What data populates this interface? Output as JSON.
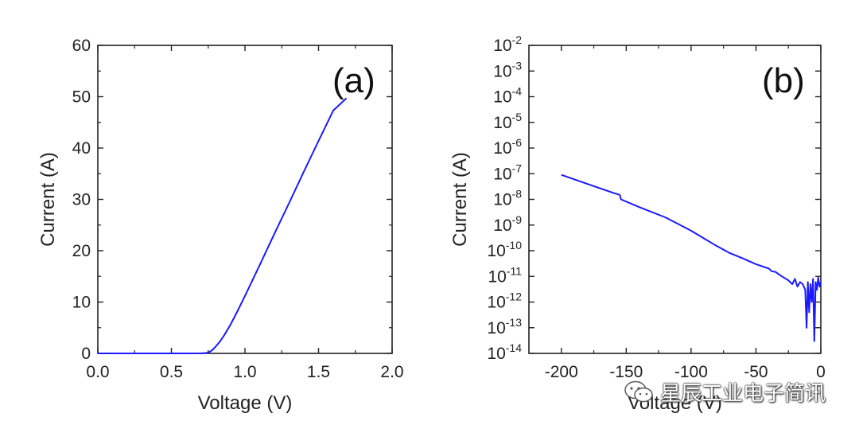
{
  "chart_data": [
    {
      "type": "line",
      "panel_label": "(a)",
      "xlabel": "Voltage (V)",
      "ylabel": "Current (A)",
      "xlim": [
        0.0,
        2.0
      ],
      "ylim": [
        0,
        60
      ],
      "x_ticks": [
        "0.0",
        "0.5",
        "1.0",
        "1.5",
        "2.0"
      ],
      "y_ticks": [
        "0",
        "10",
        "20",
        "30",
        "40",
        "50",
        "60"
      ],
      "series": [
        {
          "color": "#1a1aff",
          "x": [
            0.0,
            0.5,
            0.7,
            0.74,
            0.76,
            0.78,
            0.8,
            0.83,
            0.86,
            0.9,
            0.95,
            1.0,
            1.1,
            1.2,
            1.3,
            1.4,
            1.5,
            1.6,
            1.69
          ],
          "y": [
            0,
            0,
            0,
            0.1,
            0.3,
            0.7,
            1.3,
            2.3,
            3.6,
            5.5,
            8.3,
            11.2,
            17.2,
            23.3,
            29.3,
            35.4,
            41.4,
            47.3,
            49.7
          ]
        }
      ]
    },
    {
      "type": "line",
      "panel_label": "(b)",
      "xlabel": "Voltage (V)",
      "ylabel": "Current (A)",
      "xlim": [
        -225,
        0
      ],
      "ylim": [
        1e-14,
        0.01
      ],
      "yscale": "log",
      "x_ticks": [
        "-200",
        "-150",
        "-100",
        "-50",
        "0"
      ],
      "y_ticks": [
        "10-14",
        "10-13",
        "10-12",
        "10-11",
        "10-10",
        "10-9",
        "10-8",
        "10-7",
        "10-6",
        "10-5",
        "10-4",
        "10-3",
        "10-2"
      ],
      "series": [
        {
          "color": "#1a1aff",
          "x": [
            -200,
            -180,
            -160,
            -155,
            -154,
            -140,
            -120,
            -110,
            -100,
            -90,
            -80,
            -70,
            -60,
            -50,
            -40,
            -38,
            -35,
            -30,
            -25,
            -22,
            -20,
            -18,
            -16,
            -14,
            -12,
            -11,
            -10,
            -9,
            -8,
            -7,
            -6,
            -5,
            -4,
            -3,
            -2,
            -1,
            0
          ],
          "y": [
            9e-08,
            4e-08,
            1.8e-08,
            1.5e-08,
            1e-08,
            5e-09,
            2e-09,
            1.1e-09,
            6e-10,
            3e-10,
            1.5e-10,
            8e-11,
            5e-11,
            3e-11,
            2e-11,
            1.6e-11,
            1.5e-11,
            1e-11,
            7e-12,
            5e-12,
            8e-12,
            4e-12,
            6e-12,
            5e-12,
            3e-12,
            1e-13,
            6e-12,
            4e-13,
            5e-12,
            1e-12,
            8e-12,
            3e-14,
            6e-12,
            3e-12,
            9e-12,
            4e-12,
            6e-12
          ]
        }
      ]
    }
  ],
  "watermark": {
    "text": "星辰工业电子简讯",
    "icon": "wechat-logo-icon"
  }
}
